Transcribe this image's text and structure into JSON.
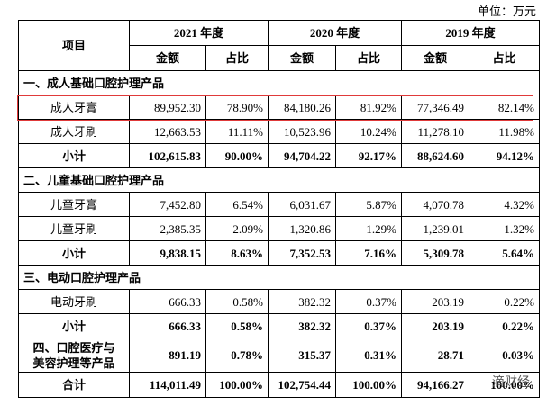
{
  "unit": "单位：万元",
  "header": {
    "item": "项目",
    "years": [
      "2021 年度",
      "2020 年度",
      "2019 年度"
    ],
    "subheaders": [
      "金额",
      "占比",
      "金额",
      "占比",
      "金额",
      "占比"
    ]
  },
  "table": {
    "sections": [
      {
        "title": "一、成人基础口腔护理产品",
        "rows": [
          {
            "label": "成人牙膏",
            "cells": [
              "89,952.30",
              "78.90%",
              "84,180.26",
              "81.92%",
              "77,346.49",
              "82.14%"
            ]
          },
          {
            "label": "成人牙刷",
            "cells": [
              "12,663.53",
              "11.11%",
              "10,523.96",
              "10.24%",
              "11,278.10",
              "11.98%"
            ]
          }
        ],
        "subtotal": {
          "label": "小计",
          "cells": [
            "102,615.83",
            "90.00%",
            "94,704.22",
            "92.17%",
            "88,624.60",
            "94.12%"
          ]
        }
      },
      {
        "title": "二、儿童基础口腔护理产品",
        "rows": [
          {
            "label": "儿童牙膏",
            "cells": [
              "7,452.80",
              "6.54%",
              "6,031.67",
              "5.87%",
              "4,070.78",
              "4.32%"
            ]
          },
          {
            "label": "儿童牙刷",
            "cells": [
              "2,385.35",
              "2.09%",
              "1,320.86",
              "1.29%",
              "1,239.01",
              "1.32%"
            ]
          }
        ],
        "subtotal": {
          "label": "小计",
          "cells": [
            "9,838.15",
            "8.63%",
            "7,352.53",
            "7.16%",
            "5,309.78",
            "5.64%"
          ]
        }
      },
      {
        "title": "三、电动口腔护理产品",
        "rows": [
          {
            "label": "电动牙刷",
            "cells": [
              "666.33",
              "0.58%",
              "382.32",
              "0.37%",
              "203.19",
              "0.22%"
            ]
          }
        ],
        "subtotal": {
          "label": "小计",
          "cells": [
            "666.33",
            "0.58%",
            "382.32",
            "0.37%",
            "203.19",
            "0.22%"
          ]
        }
      }
    ],
    "other": {
      "label": [
        "四、口腔医疗与",
        "美容护理等产品"
      ],
      "cells": [
        "891.19",
        "0.78%",
        "315.37",
        "0.31%",
        "28.71",
        "0.03%"
      ]
    },
    "total": {
      "label": "合计",
      "cells": [
        "114,011.49",
        "100.00%",
        "102,754.44",
        "100.00%",
        "94,166.27",
        "100.00%"
      ]
    }
  },
  "watermark": "滴财经"
}
